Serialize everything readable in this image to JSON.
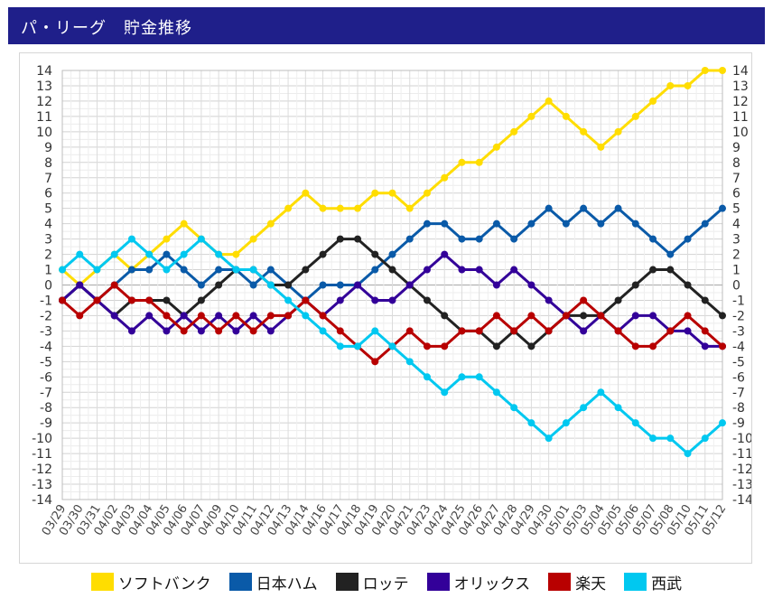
{
  "header": {
    "title": "パ・リーグ　貯金推移"
  },
  "chart_data": {
    "type": "line",
    "ylim": [
      -14,
      14
    ],
    "grid": true,
    "legend_position": "bottom",
    "dates": [
      "03/29",
      "03/30",
      "03/31",
      "04/02",
      "04/03",
      "04/04",
      "04/05",
      "04/06",
      "04/07",
      "04/09",
      "04/10",
      "04/11",
      "04/12",
      "04/13",
      "04/14",
      "04/16",
      "04/17",
      "04/18",
      "04/19",
      "04/20",
      "04/21",
      "04/23",
      "04/24",
      "04/25",
      "04/26",
      "04/27",
      "04/28",
      "04/29",
      "04/30",
      "05/01",
      "05/03",
      "05/04",
      "05/05",
      "05/06",
      "05/07",
      "05/08",
      "05/10",
      "05/11",
      "05/12"
    ],
    "series": [
      {
        "name": "ソフトバンク",
        "color": "#ffdd00",
        "values": [
          1,
          0,
          1,
          2,
          1,
          2,
          3,
          4,
          3,
          2,
          2,
          3,
          4,
          5,
          6,
          5,
          5,
          5,
          6,
          6,
          5,
          6,
          7,
          8,
          8,
          9,
          10,
          11,
          12,
          11,
          10,
          9,
          10,
          11,
          12,
          13,
          13,
          14,
          14
        ]
      },
      {
        "name": "日本ハム",
        "color": "#0a5aa8",
        "values": [
          -1,
          0,
          -1,
          0,
          1,
          1,
          2,
          1,
          0,
          1,
          1,
          0,
          1,
          0,
          -1,
          0,
          0,
          0,
          1,
          2,
          3,
          4,
          4,
          3,
          3,
          4,
          3,
          4,
          5,
          4,
          5,
          4,
          5,
          4,
          3,
          2,
          3,
          4,
          5
        ]
      },
      {
        "name": "ロッテ",
        "color": "#222222",
        "values": [
          -1,
          0,
          -1,
          -2,
          -1,
          -1,
          -1,
          -2,
          -1,
          0,
          1,
          1,
          0,
          0,
          1,
          2,
          3,
          3,
          2,
          1,
          0,
          -1,
          -2,
          -3,
          -3,
          -4,
          -3,
          -4,
          -3,
          -2,
          -2,
          -2,
          -1,
          0,
          1,
          1,
          0,
          -1,
          -2
        ]
      },
      {
        "name": "オリックス",
        "color": "#330099",
        "values": [
          -1,
          0,
          -1,
          -2,
          -3,
          -2,
          -3,
          -2,
          -3,
          -2,
          -3,
          -2,
          -3,
          -2,
          -1,
          -2,
          -1,
          0,
          -1,
          -1,
          0,
          1,
          2,
          1,
          1,
          0,
          1,
          0,
          -1,
          -2,
          -3,
          -2,
          -3,
          -2,
          -2,
          -3,
          -3,
          -4,
          -4
        ]
      },
      {
        "name": "楽天",
        "color": "#b80000",
        "values": [
          -1,
          -2,
          -1,
          0,
          -1,
          -1,
          -2,
          -3,
          -2,
          -3,
          -2,
          -3,
          -2,
          -2,
          -1,
          -2,
          -3,
          -4,
          -5,
          -4,
          -3,
          -4,
          -4,
          -3,
          -3,
          -2,
          -3,
          -2,
          -3,
          -2,
          -1,
          -2,
          -3,
          -4,
          -4,
          -3,
          -2,
          -3,
          -4
        ]
      },
      {
        "name": "西武",
        "color": "#00c8f0",
        "values": [
          1,
          2,
          1,
          2,
          3,
          2,
          1,
          2,
          3,
          2,
          1,
          1,
          0,
          -1,
          -2,
          -3,
          -4,
          -4,
          -3,
          -4,
          -5,
          -6,
          -7,
          -6,
          -6,
          -7,
          -8,
          -9,
          -10,
          -9,
          -8,
          -7,
          -8,
          -9,
          -10,
          -10,
          -11,
          -10,
          -9
        ]
      }
    ]
  }
}
